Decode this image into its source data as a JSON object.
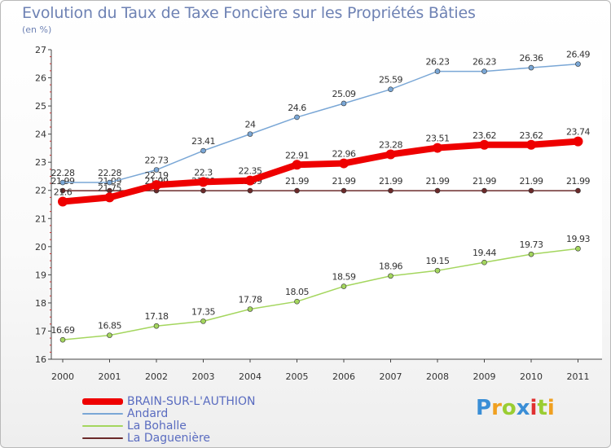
{
  "header": {
    "title": "Evolution du Taux de Taxe Foncière sur les Propriétés Bâties",
    "subtitle": "(en %)"
  },
  "logo": {
    "letters": [
      "P",
      "r",
      "o",
      "x",
      "i",
      "t",
      "i"
    ],
    "colors": [
      "#3a8ed6",
      "#f0a020",
      "#9acd32",
      "#3a8ed6",
      "#e03030",
      "#9acd32",
      "#f0a020"
    ]
  },
  "chart_data": {
    "type": "line",
    "x": [
      "2000",
      "2001",
      "2002",
      "2003",
      "2004",
      "2005",
      "2006",
      "2007",
      "2008",
      "2009",
      "2010",
      "2011"
    ],
    "ylim": [
      16,
      27
    ],
    "yticks": [
      "16",
      "17",
      "18",
      "19",
      "20",
      "21",
      "22",
      "23",
      "24",
      "25",
      "26",
      "27"
    ],
    "grid": false,
    "legend_position": "bottom-left",
    "series": [
      {
        "name": "La Daguenière",
        "color": "#6b2a2a",
        "values": [
          21.99,
          21.99,
          21.99,
          21.99,
          21.99,
          21.99,
          21.99,
          21.99,
          21.99,
          21.99,
          21.99,
          21.99
        ],
        "labels": [
          "21.99",
          "21.99",
          "21.99",
          "21.99",
          "21.99",
          "21.99",
          "21.99",
          "21.99",
          "21.99",
          "21.99",
          "21.99",
          "21.99"
        ]
      },
      {
        "name": "La Bohalle",
        "color": "#a4d65e",
        "values": [
          16.69,
          16.85,
          17.18,
          17.35,
          17.78,
          18.05,
          18.59,
          18.96,
          19.15,
          19.44,
          19.73,
          19.93
        ],
        "labels": [
          "16.69",
          "16.85",
          "17.18",
          "17.35",
          "17.78",
          "18.05",
          "18.59",
          "18.96",
          "19.15",
          "19.44",
          "19.73",
          "19.93"
        ]
      },
      {
        "name": "Andard",
        "color": "#7aa7d6",
        "values": [
          22.28,
          22.28,
          22.73,
          23.41,
          24.0,
          24.6,
          25.09,
          25.59,
          26.23,
          26.23,
          26.36,
          26.49
        ],
        "labels": [
          "22.28",
          "22.28",
          "22.73",
          "23.41",
          "24",
          "24.6",
          "25.09",
          "25.59",
          "26.23",
          "26.23",
          "26.36",
          "26.49"
        ]
      },
      {
        "name": "BRAIN-SUR-L'AUTHION",
        "color": "#ee0000",
        "values": [
          21.6,
          21.75,
          22.19,
          22.3,
          22.35,
          22.91,
          22.96,
          23.28,
          23.51,
          23.62,
          23.62,
          23.74
        ],
        "labels": [
          "21.6",
          "21.75",
          "22.19",
          "22.3",
          "22.35",
          "22.91",
          "22.96",
          "23.28",
          "23.51",
          "23.62",
          "23.62",
          "23.74"
        ]
      }
    ],
    "legend": [
      {
        "name": "BRAIN-SUR-L'AUTHION",
        "color": "#ee0000"
      },
      {
        "name": "Andard",
        "color": "#7aa7d6"
      },
      {
        "name": "La Bohalle",
        "color": "#a4d65e"
      },
      {
        "name": "La Daguenière",
        "color": "#6b2a2a"
      }
    ]
  }
}
